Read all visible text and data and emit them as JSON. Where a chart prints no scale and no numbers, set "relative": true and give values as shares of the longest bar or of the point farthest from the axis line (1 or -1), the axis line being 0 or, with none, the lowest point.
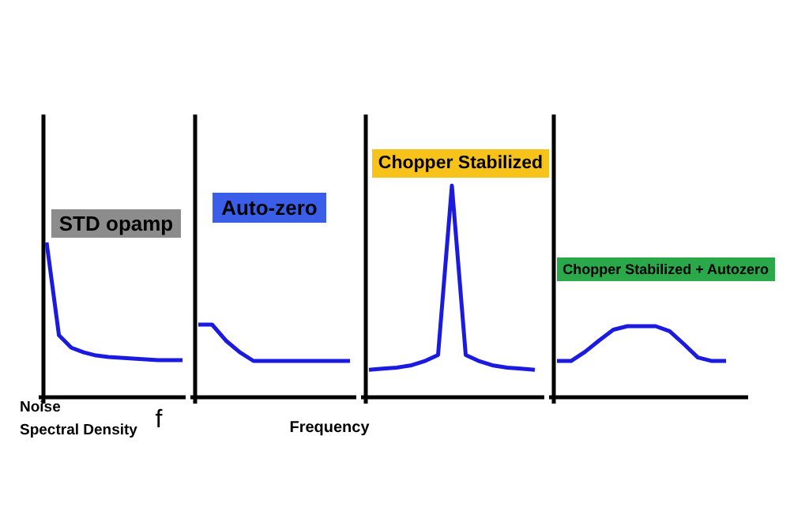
{
  "chart_data": [
    {
      "type": "line",
      "title": "STD opamp",
      "ylabel": "Noise\nSpectral Density",
      "xlabel": "f",
      "relative": true,
      "categories": [
        null,
        null,
        null,
        null,
        null,
        null,
        null,
        null,
        null,
        null,
        null,
        null
      ],
      "series": [
        {
          "color": "#1a1ae0",
          "values": [
            1.0,
            0.4,
            0.32,
            0.29,
            0.27,
            0.26,
            0.255,
            0.25,
            0.245,
            0.24,
            0.24,
            0.24
          ]
        }
      ]
    },
    {
      "type": "line",
      "title": "Auto-zero",
      "xlabel": "Frequency",
      "relative": true,
      "categories": [
        null,
        null,
        null,
        null,
        null,
        null,
        null,
        null,
        null,
        null,
        null,
        null
      ],
      "series": [
        {
          "color": "#1a1ae0",
          "values": [
            1.0,
            1.0,
            0.78,
            0.62,
            0.5,
            0.5,
            0.5,
            0.5,
            0.5,
            0.5,
            0.5,
            0.5
          ]
        }
      ]
    },
    {
      "type": "line",
      "title": "Chopper Stabilized",
      "relative": true,
      "categories": [
        null,
        null,
        null,
        null,
        null,
        null,
        null,
        null,
        null,
        null,
        null,
        null,
        null
      ],
      "series": [
        {
          "color": "#1a1ae0",
          "values": [
            0.13,
            0.135,
            0.14,
            0.15,
            0.17,
            0.2,
            1.0,
            0.2,
            0.17,
            0.15,
            0.14,
            0.135,
            0.13
          ]
        }
      ]
    },
    {
      "type": "line",
      "title": "Chopper Stabilized + Autozero",
      "relative": true,
      "categories": [
        null,
        null,
        null,
        null,
        null,
        null,
        null,
        null,
        null,
        null,
        null,
        null,
        null
      ],
      "series": [
        {
          "color": "#1a1ae0",
          "values": [
            0.51,
            0.51,
            0.64,
            0.8,
            0.95,
            1.0,
            1.0,
            1.0,
            0.93,
            0.75,
            0.56,
            0.51,
            0.51
          ]
        }
      ]
    }
  ]
}
